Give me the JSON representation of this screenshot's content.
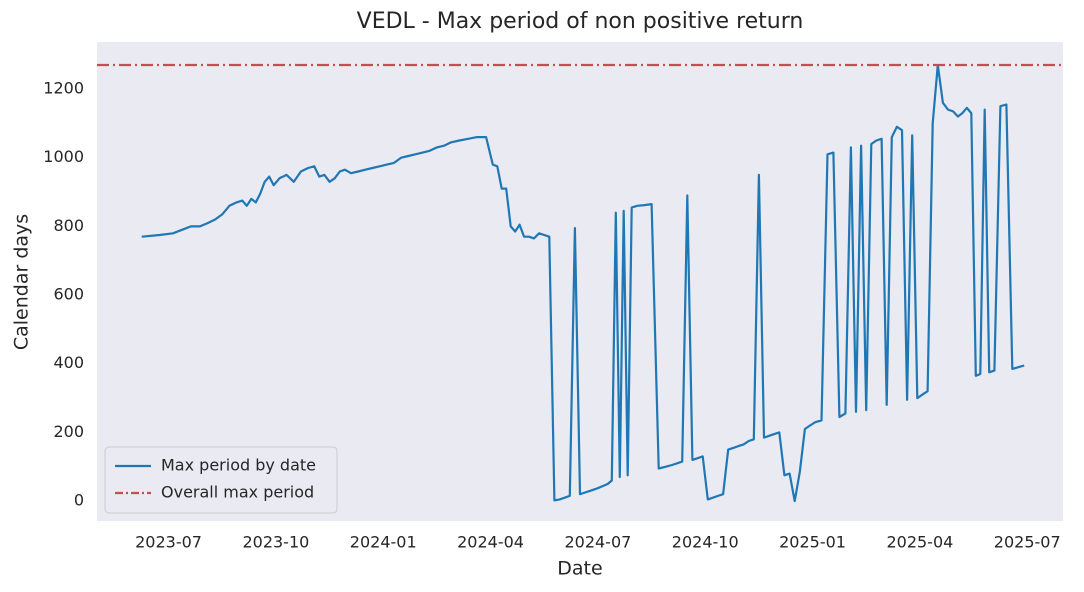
{
  "chart_data": {
    "type": "line",
    "title": "VEDL - Max period of non positive return",
    "x_label": "Date",
    "y_label": "Calendar days",
    "x": [
      "2023-06",
      "2023-06",
      "2023-07",
      "2023-07",
      "2023-07",
      "2023-07",
      "2023-08",
      "2023-08",
      "2023-08",
      "2023-08",
      "2023-08",
      "2023-09",
      "2023-09",
      "2023-09",
      "2023-09",
      "2023-09",
      "2023-09",
      "2023-09",
      "2023-09",
      "2023-10",
      "2023-10",
      "2023-10",
      "2023-10",
      "2023-10",
      "2023-11",
      "2023-11",
      "2023-11",
      "2023-11",
      "2023-11",
      "2023-11",
      "2023-11",
      "2023-12",
      "2023-12",
      "2023-12",
      "2023-12",
      "2023-12",
      "2024-01",
      "2024-01",
      "2024-01",
      "2024-01",
      "2024-01",
      "2024-02",
      "2024-02",
      "2024-02",
      "2024-02",
      "2024-02",
      "2024-03",
      "2024-03",
      "2024-03",
      "2024-03",
      "2024-04",
      "2024-04",
      "2024-04",
      "2024-04",
      "2024-04",
      "2024-04",
      "2024-04",
      "2024-04",
      "2024-05",
      "2024-05",
      "2024-05",
      "2024-05",
      "2024-05",
      "2024-05",
      "2024-05",
      "2024-06",
      "2024-06",
      "2024-06",
      "2024-06",
      "2024-06",
      "2024-06",
      "2024-06",
      "2024-07",
      "2024-07",
      "2024-07",
      "2024-07",
      "2024-07",
      "2024-07",
      "2024-07",
      "2024-07",
      "2024-07",
      "2024-08",
      "2024-08",
      "2024-08",
      "2024-08",
      "2024-08",
      "2024-09",
      "2024-09",
      "2024-09",
      "2024-09",
      "2024-09",
      "2024-09",
      "2024-09",
      "2024-10",
      "2024-10",
      "2024-10",
      "2024-10",
      "2024-10",
      "2024-10",
      "2024-10",
      "2024-11",
      "2024-11",
      "2024-11",
      "2024-11",
      "2024-11",
      "2024-11",
      "2024-11",
      "2024-12",
      "2024-12",
      "2024-12",
      "2024-12",
      "2024-12",
      "2024-12",
      "2024-12",
      "2025-01",
      "2025-01",
      "2025-01",
      "2025-01",
      "2025-01",
      "2025-01",
      "2025-02",
      "2025-02",
      "2025-02",
      "2025-02",
      "2025-02",
      "2025-02",
      "2025-02",
      "2025-03",
      "2025-03",
      "2025-03",
      "2025-03",
      "2025-03",
      "2025-03",
      "2025-03",
      "2025-04",
      "2025-04",
      "2025-04",
      "2025-04",
      "2025-04",
      "2025-04",
      "2025-04",
      "2025-05",
      "2025-05",
      "2025-05",
      "2025-05",
      "2025-05",
      "2025-05",
      "2025-05",
      "2025-05",
      "2025-06",
      "2025-06",
      "2025-06",
      "2025-06",
      "2025-06",
      "2025-06"
    ],
    "series": [
      {
        "name": "Max period by date",
        "color": "#1f77b4",
        "values": [
          770,
          775,
          780,
          790,
          800,
          800,
          810,
          820,
          835,
          860,
          870,
          875,
          860,
          880,
          870,
          895,
          930,
          945,
          920,
          940,
          950,
          930,
          960,
          970,
          975,
          945,
          950,
          930,
          940,
          960,
          965,
          955,
          960,
          965,
          970,
          975,
          980,
          985,
          1000,
          1005,
          1010,
          1015,
          1020,
          1030,
          1035,
          1045,
          1050,
          1055,
          1060,
          1060,
          980,
          975,
          910,
          910,
          800,
          785,
          805,
          770,
          770,
          765,
          780,
          775,
          770,
          2,
          5,
          10,
          15,
          795,
          20,
          25,
          30,
          35,
          40,
          45,
          50,
          60,
          840,
          70,
          845,
          75,
          855,
          860,
          862,
          865,
          95,
          100,
          105,
          110,
          115,
          890,
          120,
          125,
          130,
          5,
          10,
          15,
          20,
          150,
          155,
          160,
          165,
          175,
          180,
          950,
          185,
          190,
          195,
          200,
          75,
          80,
          0,
          85,
          210,
          220,
          230,
          235,
          1010,
          1015,
          245,
          255,
          1030,
          260,
          1035,
          265,
          1040,
          1050,
          1055,
          280,
          1060,
          1090,
          1080,
          295,
          1065,
          300,
          310,
          320,
          1100,
          1270,
          1160,
          1140,
          1135,
          1120,
          1130,
          1145,
          1130,
          365,
          370,
          1140,
          375,
          380,
          1150,
          1155,
          385,
          390,
          395
        ]
      }
    ],
    "reference_line": {
      "name": "Overall max period",
      "color": "#c44e52",
      "value": 1270
    },
    "xlim": [
      "2023-05",
      "2025-08"
    ],
    "xticks": [
      "2023-07",
      "2023-10",
      "2024-01",
      "2024-04",
      "2024-07",
      "2024-10",
      "2025-01",
      "2025-04",
      "2025-07"
    ],
    "ylim": [
      -58,
      1337
    ],
    "yticks": [
      0,
      200,
      400,
      600,
      800,
      1000,
      1200
    ],
    "grid": false,
    "legend_position": "lower-left"
  }
}
